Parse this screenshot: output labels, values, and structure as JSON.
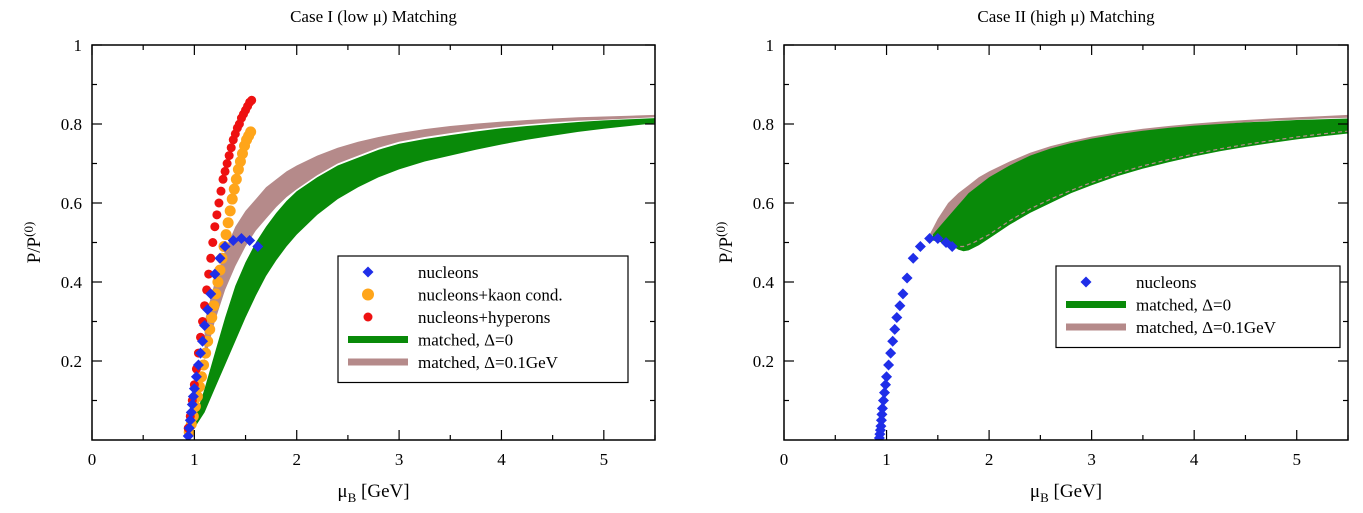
{
  "colors": {
    "nucleons": "#1f2ee8",
    "kaon": "#ffa51a",
    "hyperons": "#ee1111",
    "matched0": "#098a09",
    "matched01": "#b58a8a"
  },
  "chart_data": [
    {
      "type": "scatter",
      "title": "Case I (low μ) Matching",
      "xlabel": {
        "main": "μ",
        "sub": "B",
        "tail": " [GeV]"
      },
      "ylabel": {
        "main": "P/P",
        "sup": "(0)"
      },
      "xlim": [
        0,
        5.5
      ],
      "ylim": [
        0,
        1
      ],
      "xticks": [
        0,
        1,
        2,
        3,
        4,
        5
      ],
      "xtick_labels": [
        "0",
        "1",
        "2",
        "3",
        "4",
        "5"
      ],
      "yticks": [
        0.2,
        0.4,
        0.6,
        0.8,
        1
      ],
      "ytick_labels": [
        "0.2",
        "0.4",
        "0.6",
        "0.8",
        "1"
      ],
      "legend_position": "center-right",
      "series": [
        {
          "name": "nucleons",
          "kind": "diamond",
          "color": "#1f2ee8",
          "x": [
            0.94,
            0.95,
            0.96,
            0.97,
            0.98,
            0.99,
            1.0,
            1.02,
            1.04,
            1.06,
            1.08,
            1.1,
            1.13,
            1.16,
            1.2,
            1.25,
            1.3,
            1.38,
            1.46,
            1.54,
            1.62
          ],
          "y": [
            0.01,
            0.03,
            0.05,
            0.07,
            0.09,
            0.11,
            0.13,
            0.16,
            0.19,
            0.22,
            0.25,
            0.29,
            0.33,
            0.37,
            0.42,
            0.46,
            0.49,
            0.505,
            0.51,
            0.505,
            0.49
          ]
        },
        {
          "name": "nucleons+kaon cond.",
          "kind": "circle",
          "color": "#ffa51a",
          "x": [
            0.95,
            0.97,
            0.99,
            1.01,
            1.03,
            1.05,
            1.07,
            1.09,
            1.11,
            1.13,
            1.15,
            1.17,
            1.19,
            1.21,
            1.23,
            1.25,
            1.27,
            1.29,
            1.31,
            1.33,
            1.35,
            1.37,
            1.39,
            1.41,
            1.43,
            1.45,
            1.47,
            1.49,
            1.51,
            1.53,
            1.55
          ],
          "y": [
            0.02,
            0.04,
            0.06,
            0.085,
            0.11,
            0.135,
            0.16,
            0.19,
            0.22,
            0.25,
            0.28,
            0.31,
            0.34,
            0.37,
            0.4,
            0.43,
            0.46,
            0.49,
            0.52,
            0.55,
            0.58,
            0.61,
            0.635,
            0.66,
            0.685,
            0.705,
            0.725,
            0.745,
            0.76,
            0.77,
            0.78
          ]
        },
        {
          "name": "nucleons+hyperons",
          "kind": "circle-small",
          "color": "#ee1111",
          "x": [
            0.94,
            0.96,
            0.98,
            1.0,
            1.02,
            1.04,
            1.06,
            1.08,
            1.1,
            1.12,
            1.14,
            1.16,
            1.18,
            1.2,
            1.22,
            1.24,
            1.26,
            1.28,
            1.3,
            1.32,
            1.34,
            1.36,
            1.38,
            1.4,
            1.42,
            1.44,
            1.46,
            1.48,
            1.5,
            1.52,
            1.54,
            1.56
          ],
          "y": [
            0.03,
            0.06,
            0.1,
            0.14,
            0.18,
            0.22,
            0.26,
            0.3,
            0.34,
            0.38,
            0.42,
            0.46,
            0.5,
            0.54,
            0.57,
            0.6,
            0.63,
            0.66,
            0.68,
            0.7,
            0.72,
            0.74,
            0.76,
            0.775,
            0.79,
            0.8,
            0.815,
            0.825,
            0.835,
            0.845,
            0.855,
            0.86
          ]
        },
        {
          "name": "matched, Δ=0",
          "kind": "band",
          "color": "#098a09",
          "x": [
            1.0,
            1.1,
            1.2,
            1.3,
            1.4,
            1.5,
            1.6,
            1.7,
            1.8,
            1.9,
            2.0,
            2.2,
            2.4,
            2.6,
            2.8,
            3.0,
            3.25,
            3.5,
            3.75,
            4.0,
            4.25,
            4.5,
            4.75,
            5.0,
            5.25,
            5.5
          ],
          "y_lower": [
            0.03,
            0.07,
            0.13,
            0.19,
            0.25,
            0.31,
            0.365,
            0.415,
            0.455,
            0.49,
            0.52,
            0.57,
            0.61,
            0.64,
            0.665,
            0.685,
            0.705,
            0.72,
            0.735,
            0.748,
            0.76,
            0.77,
            0.78,
            0.788,
            0.795,
            0.802
          ],
          "y_upper": [
            0.05,
            0.13,
            0.22,
            0.31,
            0.39,
            0.45,
            0.5,
            0.54,
            0.575,
            0.605,
            0.63,
            0.665,
            0.695,
            0.715,
            0.735,
            0.75,
            0.762,
            0.772,
            0.781,
            0.789,
            0.795,
            0.8,
            0.805,
            0.809,
            0.812,
            0.815
          ]
        },
        {
          "name": "matched, Δ=0.1GeV",
          "kind": "band",
          "color": "#b58a8a",
          "x": [
            1.1,
            1.2,
            1.3,
            1.4,
            1.5,
            1.6,
            1.7,
            1.8,
            1.9,
            2.0,
            2.2,
            2.4,
            2.6,
            2.8,
            3.0,
            3.25,
            3.5,
            3.75,
            4.0,
            4.25,
            4.5,
            4.75,
            5.0,
            5.25,
            5.5
          ],
          "y_lower": [
            0.2,
            0.3,
            0.38,
            0.44,
            0.49,
            0.53,
            0.56,
            0.59,
            0.615,
            0.635,
            0.67,
            0.7,
            0.72,
            0.74,
            0.755,
            0.767,
            0.777,
            0.786,
            0.793,
            0.799,
            0.804,
            0.808,
            0.811,
            0.814,
            0.817
          ],
          "y_upper": [
            0.3,
            0.4,
            0.48,
            0.54,
            0.58,
            0.61,
            0.64,
            0.66,
            0.68,
            0.695,
            0.72,
            0.74,
            0.755,
            0.767,
            0.777,
            0.787,
            0.795,
            0.801,
            0.806,
            0.81,
            0.814,
            0.817,
            0.819,
            0.821,
            0.823
          ]
        }
      ]
    },
    {
      "type": "scatter",
      "title": "Case II (high μ) Matching",
      "xlabel": {
        "main": "μ",
        "sub": "B",
        "tail": " [GeV]"
      },
      "ylabel": {
        "main": "P/P",
        "sup": "(0)"
      },
      "xlim": [
        0,
        5.5
      ],
      "ylim": [
        0,
        1
      ],
      "xticks": [
        0,
        1,
        2,
        3,
        4,
        5
      ],
      "xtick_labels": [
        "0",
        "1",
        "2",
        "3",
        "4",
        "5"
      ],
      "yticks": [
        0.2,
        0.4,
        0.6,
        0.8,
        1
      ],
      "ytick_labels": [
        "0.2",
        "0.4",
        "0.6",
        "0.8",
        "1"
      ],
      "legend_position": "center-right",
      "series": [
        {
          "name": "nucleons",
          "kind": "diamond",
          "color": "#1f2ee8",
          "x": [
            0.93,
            0.935,
            0.94,
            0.945,
            0.95,
            0.955,
            0.96,
            0.97,
            0.98,
            0.99,
            1.0,
            1.02,
            1.04,
            1.06,
            1.08,
            1.1,
            1.13,
            1.16,
            1.2,
            1.26,
            1.33,
            1.42,
            1.5,
            1.58,
            1.64
          ],
          "y": [
            0.005,
            0.015,
            0.025,
            0.035,
            0.05,
            0.065,
            0.08,
            0.1,
            0.12,
            0.14,
            0.16,
            0.19,
            0.22,
            0.25,
            0.28,
            0.31,
            0.34,
            0.37,
            0.41,
            0.46,
            0.49,
            0.51,
            0.51,
            0.5,
            0.49
          ]
        },
        {
          "name": "matched, Δ=0",
          "kind": "band",
          "color": "#098a09",
          "x": [
            1.45,
            1.55,
            1.65,
            1.7,
            1.75,
            1.8,
            1.9,
            2.0,
            2.2,
            2.4,
            2.6,
            2.8,
            3.0,
            3.25,
            3.5,
            3.75,
            4.0,
            4.25,
            4.5,
            4.75,
            5.0,
            5.25,
            5.5
          ],
          "y_lower": [
            0.505,
            0.5,
            0.49,
            0.482,
            0.478,
            0.48,
            0.493,
            0.51,
            0.545,
            0.575,
            0.6,
            0.625,
            0.645,
            0.668,
            0.687,
            0.703,
            0.718,
            0.731,
            0.742,
            0.752,
            0.761,
            0.769,
            0.776
          ],
          "y_upper": [
            0.52,
            0.55,
            0.58,
            0.595,
            0.61,
            0.625,
            0.645,
            0.665,
            0.695,
            0.72,
            0.738,
            0.752,
            0.763,
            0.774,
            0.783,
            0.79,
            0.796,
            0.8,
            0.804,
            0.807,
            0.81,
            0.812,
            0.814
          ]
        },
        {
          "name": "matched, Δ=0.1GeV",
          "kind": "band",
          "color": "#b58a8a",
          "x": [
            1.4,
            1.5,
            1.6,
            1.7,
            1.8,
            1.9,
            2.0,
            2.2,
            2.4,
            2.6,
            2.8,
            3.0,
            3.25,
            3.5,
            3.75,
            4.0,
            4.25,
            4.5,
            4.75,
            5.0,
            5.25,
            5.5
          ],
          "y_lower": [
            0.51,
            0.53,
            0.56,
            0.58,
            0.6,
            0.62,
            0.64,
            0.675,
            0.705,
            0.725,
            0.742,
            0.755,
            0.768,
            0.779,
            0.787,
            0.794,
            0.799,
            0.804,
            0.808,
            0.811,
            0.814,
            0.816
          ],
          "y_upper": [
            0.51,
            0.56,
            0.6,
            0.625,
            0.645,
            0.665,
            0.68,
            0.705,
            0.727,
            0.744,
            0.757,
            0.768,
            0.779,
            0.788,
            0.795,
            0.801,
            0.806,
            0.81,
            0.814,
            0.817,
            0.82,
            0.823
          ]
        },
        {
          "name": "",
          "kind": "dashed",
          "color": "#b58a8a",
          "x": [
            1.65,
            1.75,
            1.85,
            2.0,
            2.2,
            2.4,
            2.6,
            2.8,
            3.0,
            3.25,
            3.5,
            3.75,
            4.0,
            4.25,
            4.5,
            4.75,
            5.0,
            5.25,
            5.5
          ],
          "y": [
            0.49,
            0.49,
            0.5,
            0.52,
            0.555,
            0.585,
            0.61,
            0.632,
            0.652,
            0.675,
            0.694,
            0.71,
            0.724,
            0.737,
            0.748,
            0.758,
            0.767,
            0.775,
            0.782
          ]
        }
      ]
    }
  ]
}
